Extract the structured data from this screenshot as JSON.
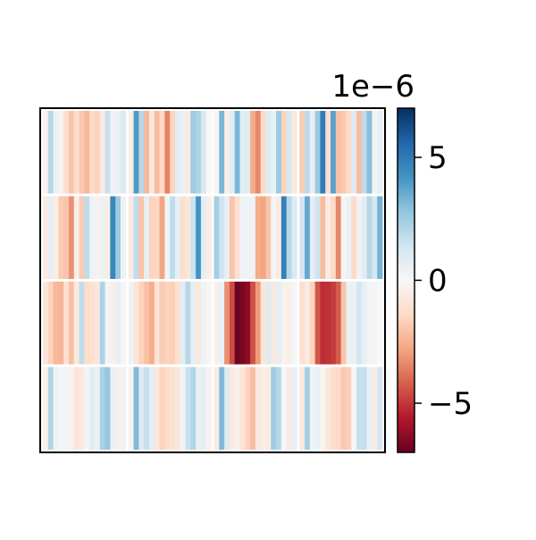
{
  "chart_data": {
    "type": "heatmap",
    "title": "",
    "xlabel": "",
    "ylabel": "",
    "x_ticks_shown": false,
    "y_ticks_shown": false,
    "colormap": "RdBu",
    "colormap_stops": [
      "#67001f",
      "#b2182b",
      "#d6604d",
      "#f4a582",
      "#fddbc7",
      "#f7f7f7",
      "#d1e5f0",
      "#92c5de",
      "#4393c3",
      "#2166ac",
      "#053061"
    ],
    "value_range": [
      -7e-06,
      7e-06
    ],
    "colorbar": {
      "position": "right",
      "scale_label": "1e−6",
      "ticks": [
        {
          "value": 5e-06,
          "label": "5"
        },
        {
          "value": 0,
          "label": "0"
        },
        {
          "value": -5e-06,
          "label": "−5"
        }
      ]
    },
    "grid_layout": {
      "rows": 4,
      "cols": 4,
      "columns_per_block": 16,
      "rows_per_block": 1,
      "separator_color": "#ffffff"
    },
    "blocks": [
      [
        [
          -0.3,
          2.0,
          0.5,
          -0.3,
          -1.2,
          -2.0,
          -1.3,
          -1.9,
          -2.3,
          -1.3,
          -1.6,
          -0.6,
          1.6,
          0.3,
          0.5,
          1.0
        ],
        [
          -0.4,
          4.0,
          2.0,
          -2.3,
          -0.8,
          -2.2,
          -1.4,
          -3.5,
          -1.6,
          0.8,
          0.5,
          -0.6,
          2.5,
          2.2,
          1.2,
          0.0
        ],
        [
          -0.2,
          3.2,
          -0.5,
          0.8,
          3.2,
          0.8,
          0.9,
          -2.6,
          -3.4,
          -1.4,
          1.0,
          0.5,
          2.6,
          -1.6,
          1.2,
          -0.7
        ],
        [
          -1.8,
          1.9,
          0.6,
          2.6,
          4.9,
          -1.2,
          3.8,
          -2.1,
          -1.9,
          -1.4,
          0.9,
          -2.2,
          1.8,
          3.0,
          0.3,
          0.6
        ]
      ],
      [
        [
          -0.6,
          0.6,
          -0.5,
          -1.8,
          -2.0,
          -3.2,
          -0.4,
          -1.8,
          1.8,
          0.4,
          -0.3,
          0.4,
          -0.5,
          4.6,
          2.6,
          0.4
        ],
        [
          -0.6,
          1.8,
          -2.0,
          0.6,
          -1.6,
          -1.5,
          -2.8,
          0.2,
          1.8,
          0.6,
          -1.2,
          -0.8,
          1.5,
          4.2,
          0.7,
          -0.5
        ],
        [
          2.4,
          1.4,
          0.6,
          -2.0,
          -1.2,
          0.4,
          0.3,
          0.3,
          -2.6,
          -2.8,
          -2.0,
          0.2,
          -0.6,
          4.8,
          2.0,
          1.0
        ],
        [
          1.3,
          3.6,
          0.7,
          1.4,
          -2.2,
          -0.6,
          -1.4,
          -3.4,
          -0.2,
          0.5,
          -1.4,
          0.3,
          0.8,
          2.0,
          1.2,
          3.3
        ]
      ],
      [
        [
          -0.9,
          -1.6,
          -2.3,
          -2.4,
          -1.1,
          -2.1,
          -0.7,
          1.8,
          -1.3,
          -1.1,
          -0.8,
          2.2,
          0.2,
          -0.4,
          0.6,
          -0.1
        ],
        [
          0.3,
          -0.9,
          -1.6,
          -2.1,
          -2.6,
          -1.0,
          -1.8,
          -1.6,
          -1.7,
          -1.2,
          0.8,
          2.0,
          0.7,
          -0.8,
          0.3,
          -0.1
        ],
        [
          -0.4,
          0.5,
          -3.2,
          -4.6,
          -6.9,
          -6.6,
          -6.3,
          -4.5,
          -3.0,
          -0.9,
          0.9,
          -0.8,
          0.7,
          -0.3,
          -0.4,
          0.1
        ],
        [
          -1.2,
          -0.7,
          -1.6,
          -4.4,
          -5.2,
          -5.1,
          -4.9,
          -4.3,
          -2.0,
          0.5,
          0.5,
          1.3,
          0.6,
          0.2,
          0.2,
          0.0
        ]
      ],
      [
        [
          -0.4,
          2.1,
          0.4,
          0.2,
          0.3,
          -0.3,
          -1.0,
          -0.7,
          0.2,
          0.8,
          0.5,
          2.3,
          2.7,
          0.5,
          -0.4,
          0.3
        ],
        [
          -0.2,
          3.1,
          1.0,
          1.6,
          0.7,
          -0.9,
          -1.6,
          -1.3,
          -1.1,
          -0.8,
          0.3,
          1.6,
          2.1,
          0.6,
          0.7,
          -0.2
        ],
        [
          -0.6,
          3.1,
          0.9,
          -0.7,
          -0.3,
          -0.9,
          -1.6,
          -2.2,
          -0.8,
          -0.5,
          -0.6,
          2.5,
          2.0,
          0.1,
          -0.6,
          0.6
        ],
        [
          -0.7,
          2.4,
          0.3,
          0.5,
          -0.2,
          -0.8,
          -1.3,
          -1.4,
          -1.9,
          -1.7,
          -0.1,
          1.6,
          1.7,
          0.5,
          -0.6,
          1.3
        ]
      ]
    ]
  }
}
